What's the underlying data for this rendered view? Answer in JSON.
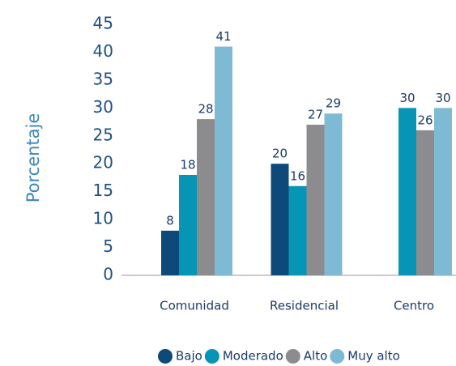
{
  "chart_data": {
    "type": "bar",
    "y_label": "Porcentaje",
    "categories": [
      "Comunidad",
      "Residencial",
      "Centro"
    ],
    "series": [
      {
        "name": "Bajo",
        "color": "#0d4a7a",
        "values": [
          8,
          20,
          null
        ]
      },
      {
        "name": "Moderado",
        "color": "#0795b5",
        "values": [
          18,
          16,
          30
        ]
      },
      {
        "name": "Alto",
        "color": "#8c8c8f",
        "values": [
          28,
          27,
          26
        ]
      },
      {
        "name": "Muy alto",
        "color": "#7ebad4",
        "values": [
          41,
          29,
          30
        ]
      }
    ],
    "ylim": [
      0,
      45
    ],
    "yticks": [
      0,
      5,
      10,
      15,
      20,
      25,
      30,
      35,
      40,
      45
    ],
    "grid": false,
    "legend": "bottom"
  }
}
